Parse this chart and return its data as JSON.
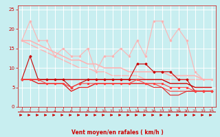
{
  "x": [
    0,
    1,
    2,
    3,
    4,
    5,
    6,
    7,
    8,
    9,
    10,
    11,
    12,
    13,
    14,
    15,
    16,
    17,
    18,
    19,
    20,
    21,
    22,
    23
  ],
  "series": [
    {
      "y": [
        17,
        22,
        17,
        17,
        13,
        15,
        13,
        13,
        15,
        9,
        13,
        13,
        15,
        13,
        17,
        13,
        22,
        22,
        17,
        20,
        17,
        9,
        7,
        7
      ],
      "color": "#ffb3b3",
      "lw": 0.8,
      "marker": "o",
      "ms": 1.5,
      "zorder": 2
    },
    {
      "y": [
        17,
        17,
        16,
        15,
        14,
        13,
        12,
        12,
        11,
        11,
        10,
        10,
        10,
        9,
        9,
        9,
        9,
        9,
        8,
        8,
        8,
        8,
        7,
        7
      ],
      "color": "#ffb3b3",
      "lw": 1.2,
      "marker": null,
      "ms": 0,
      "zorder": 2
    },
    {
      "y": [
        7,
        13,
        7,
        7,
        7,
        7,
        5,
        6,
        7,
        7,
        7,
        7,
        7,
        7,
        11,
        11,
        9,
        9,
        9,
        7,
        7,
        4,
        4,
        4
      ],
      "color": "#cc0000",
      "lw": 0.8,
      "marker": "D",
      "ms": 1.5,
      "zorder": 3
    },
    {
      "y": [
        7,
        7,
        7,
        7,
        7,
        7,
        7,
        7,
        7,
        7,
        7,
        7,
        7,
        7,
        7,
        7,
        7,
        7,
        6,
        6,
        6,
        5,
        5,
        5
      ],
      "color": "#cc0000",
      "lw": 1.0,
      "marker": null,
      "ms": 0,
      "zorder": 2
    },
    {
      "y": [
        7,
        7,
        7,
        6,
        6,
        6,
        5,
        6,
        6,
        6,
        6,
        6,
        6,
        6,
        7,
        6,
        6,
        6,
        5,
        5,
        5,
        4,
        4,
        4
      ],
      "color": "#ff4444",
      "lw": 0.8,
      "marker": "o",
      "ms": 1.5,
      "zorder": 3
    },
    {
      "y": [
        7,
        7,
        6,
        6,
        6,
        6,
        4,
        5,
        5,
        6,
        6,
        6,
        6,
        6,
        6,
        6,
        6,
        5,
        4,
        4,
        4,
        4,
        4,
        4
      ],
      "color": "#ff4444",
      "lw": 0.8,
      "marker": null,
      "ms": 0,
      "zorder": 2
    },
    {
      "y": [
        7,
        7,
        6,
        6,
        6,
        6,
        4,
        5,
        5,
        6,
        6,
        6,
        6,
        6,
        6,
        6,
        5,
        5,
        3,
        3,
        4,
        4,
        4,
        4
      ],
      "color": "#dd2222",
      "lw": 0.8,
      "marker": null,
      "ms": 0,
      "zorder": 2
    },
    {
      "y": [
        17,
        16,
        15,
        14,
        13,
        12,
        11,
        10,
        10,
        9,
        9,
        8,
        8,
        8,
        8,
        7,
        7,
        7,
        7,
        7,
        7,
        7,
        7,
        7
      ],
      "color": "#ffb3b3",
      "lw": 1.0,
      "marker": null,
      "ms": 0,
      "zorder": 1
    }
  ],
  "xlabel": "Vent moyen/en rafales ( km/h )",
  "xlim": [
    -0.5,
    23.5
  ],
  "ylim": [
    0,
    26
  ],
  "yticks": [
    0,
    5,
    10,
    15,
    20,
    25
  ],
  "xticks": [
    0,
    1,
    2,
    3,
    4,
    5,
    6,
    7,
    8,
    9,
    10,
    11,
    12,
    13,
    14,
    15,
    16,
    17,
    18,
    19,
    20,
    21,
    22,
    23
  ],
  "bg_color": "#c8eef0",
  "grid_color": "#ffffff",
  "text_color": "#cc0000",
  "axis_color": "#cc0000"
}
